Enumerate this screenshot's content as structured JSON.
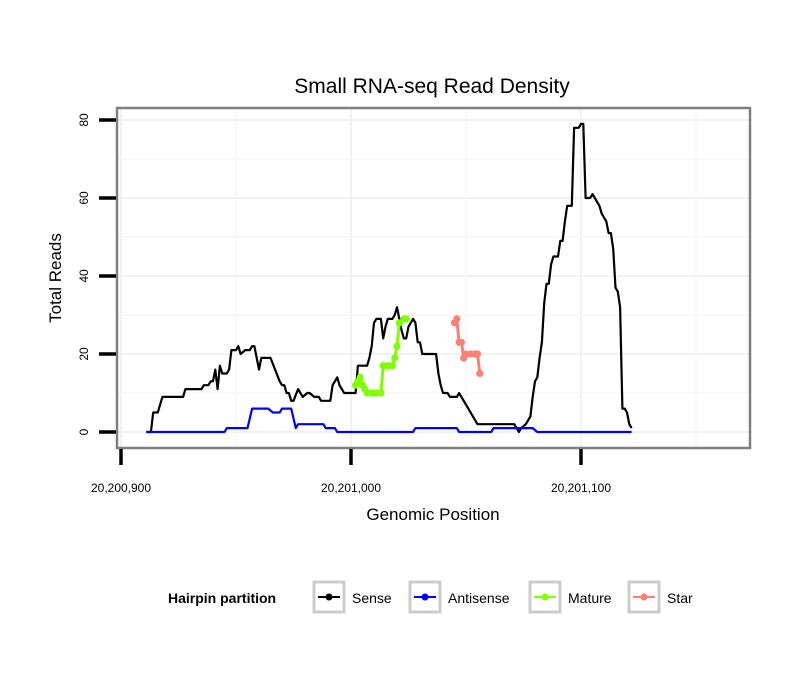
{
  "chart_data": {
    "type": "line",
    "title": "Small RNA-seq Read Density",
    "xlabel": "Genomic Position",
    "ylabel": "Total Reads",
    "xlim": [
      20200888,
      20201170
    ],
    "ylim": [
      -4,
      83
    ],
    "x_ticks": [
      20200900,
      20201000,
      20201100
    ],
    "x_tick_labels": [
      "20,200,900",
      "20,201,000",
      "20,201,100"
    ],
    "y_ticks": [
      0,
      20,
      40,
      60,
      80
    ],
    "y_tick_labels": [
      "0",
      "20",
      "40",
      "60",
      "80"
    ],
    "grid": true,
    "legend": {
      "title": "Hairpin partition",
      "position": "bottom",
      "entries": [
        {
          "label": "Sense",
          "color": "#000000"
        },
        {
          "label": "Antisense",
          "color": "#0000ff"
        },
        {
          "label": "Mature",
          "color": "#7fff00"
        },
        {
          "label": "Star",
          "color": "#fa8072"
        }
      ]
    },
    "series": [
      {
        "name": "Sense",
        "color": "#000000",
        "points": [
          [
            20200911,
            0
          ],
          [
            20200913,
            0
          ],
          [
            20200914,
            5
          ],
          [
            20200916,
            5
          ],
          [
            20200918,
            9
          ],
          [
            20200927,
            9
          ],
          [
            20200928,
            11
          ],
          [
            20200935,
            11
          ],
          [
            20200936,
            12
          ],
          [
            20200938,
            12
          ],
          [
            20200939,
            13
          ],
          [
            20200940,
            13
          ],
          [
            20200941,
            16
          ],
          [
            20200942,
            11
          ],
          [
            20200943,
            17
          ],
          [
            20200944,
            15
          ],
          [
            20200946,
            15
          ],
          [
            20200947,
            16
          ],
          [
            20200948,
            21
          ],
          [
            20200950,
            21
          ],
          [
            20200951,
            22
          ],
          [
            20200952,
            20
          ],
          [
            20200954,
            21
          ],
          [
            20200956,
            21
          ],
          [
            20200957,
            22
          ],
          [
            20200958,
            22
          ],
          [
            20200960,
            16
          ],
          [
            20200961,
            19
          ],
          [
            20200965,
            19
          ],
          [
            20200967,
            16
          ],
          [
            20200969,
            13
          ],
          [
            20200970,
            12
          ],
          [
            20200971,
            12
          ],
          [
            20200972,
            10
          ],
          [
            20200973,
            10
          ],
          [
            20200974,
            8
          ],
          [
            20200975,
            8
          ],
          [
            20200977,
            11
          ],
          [
            20200978,
            10
          ],
          [
            20200979,
            9
          ],
          [
            20200981,
            10
          ],
          [
            20200982,
            10
          ],
          [
            20200984,
            9
          ],
          [
            20200986,
            9
          ],
          [
            20200987,
            8
          ],
          [
            20200991,
            8
          ],
          [
            20200992,
            12
          ],
          [
            20200993,
            13
          ],
          [
            20200994,
            14
          ],
          [
            20200995,
            12
          ],
          [
            20200996,
            11
          ],
          [
            20200997,
            10
          ],
          [
            20201000,
            10
          ],
          [
            20201002,
            10
          ],
          [
            20201003,
            17
          ],
          [
            20201007,
            17
          ],
          [
            20201008,
            19
          ],
          [
            20201009,
            22
          ],
          [
            20201010,
            28
          ],
          [
            20201011,
            29
          ],
          [
            20201013,
            29
          ],
          [
            20201014,
            24
          ],
          [
            20201015,
            27
          ],
          [
            20201016,
            29
          ],
          [
            20201018,
            29
          ],
          [
            20201019,
            30
          ],
          [
            20201020,
            32
          ],
          [
            20201021,
            29
          ],
          [
            20201022,
            26
          ],
          [
            20201023,
            24
          ],
          [
            20201024,
            24
          ],
          [
            20201025,
            27
          ],
          [
            20201026,
            28
          ],
          [
            20201027,
            29
          ],
          [
            20201028,
            28
          ],
          [
            20201029,
            23
          ],
          [
            20201030,
            23
          ],
          [
            20201031,
            20
          ],
          [
            20201032,
            20
          ],
          [
            20201037,
            20
          ],
          [
            20201038,
            15
          ],
          [
            20201039,
            12
          ],
          [
            20201040,
            10
          ],
          [
            20201042,
            10
          ],
          [
            20201043,
            9
          ],
          [
            20201046,
            9
          ],
          [
            20201047,
            10
          ],
          [
            20201048,
            9
          ],
          [
            20201049,
            8
          ],
          [
            20201050,
            7
          ],
          [
            20201051,
            6
          ],
          [
            20201052,
            5
          ],
          [
            20201053,
            4
          ],
          [
            20201054,
            3
          ],
          [
            20201055,
            2
          ],
          [
            20201071,
            2
          ],
          [
            20201072,
            1
          ],
          [
            20201073,
            0
          ],
          [
            20201074,
            1
          ],
          [
            20201076,
            2
          ],
          [
            20201077,
            3
          ],
          [
            20201078,
            4
          ],
          [
            20201079,
            9
          ],
          [
            20201080,
            13
          ],
          [
            20201081,
            14
          ],
          [
            20201082,
            19
          ],
          [
            20201083,
            23
          ],
          [
            20201084,
            33
          ],
          [
            20201085,
            38
          ],
          [
            20201086,
            38
          ],
          [
            20201087,
            43
          ],
          [
            20201088,
            45
          ],
          [
            20201090,
            45
          ],
          [
            20201091,
            49
          ],
          [
            20201092,
            49
          ],
          [
            20201093,
            54
          ],
          [
            20201094,
            58
          ],
          [
            20201096,
            58
          ],
          [
            20201097,
            78
          ],
          [
            20201099,
            78
          ],
          [
            20201100,
            79
          ],
          [
            20201101,
            79
          ],
          [
            20201102,
            60
          ],
          [
            20201104,
            60
          ],
          [
            20201105,
            61
          ],
          [
            20201106,
            60
          ],
          [
            20201107,
            59
          ],
          [
            20201108,
            58
          ],
          [
            20201109,
            56
          ],
          [
            20201110,
            55
          ],
          [
            20201111,
            54
          ],
          [
            20201112,
            51
          ],
          [
            20201113,
            51
          ],
          [
            20201114,
            47
          ],
          [
            20201115,
            37
          ],
          [
            20201116,
            36
          ],
          [
            20201117,
            32
          ],
          [
            20201118,
            6
          ],
          [
            20201119,
            6
          ],
          [
            20201120,
            5
          ],
          [
            20201121,
            2
          ],
          [
            20201122,
            1
          ]
        ]
      },
      {
        "name": "Antisense",
        "color": "#0000ff",
        "points": [
          [
            20200911,
            0
          ],
          [
            20200945,
            0
          ],
          [
            20200946,
            1
          ],
          [
            20200955,
            1
          ],
          [
            20200957,
            6
          ],
          [
            20200964,
            6
          ],
          [
            20200966,
            5
          ],
          [
            20200969,
            5
          ],
          [
            20200970,
            6
          ],
          [
            20200974,
            6
          ],
          [
            20200976,
            1
          ],
          [
            20200977,
            2
          ],
          [
            20200988,
            2
          ],
          [
            20200989,
            1
          ],
          [
            20200993,
            1
          ],
          [
            20200994,
            0
          ],
          [
            20201027,
            0
          ],
          [
            20201028,
            1
          ],
          [
            20201046,
            1
          ],
          [
            20201047,
            0
          ],
          [
            20201061,
            0
          ],
          [
            20201062,
            1
          ],
          [
            20201079,
            1
          ],
          [
            20201081,
            0
          ],
          [
            20201122,
            0
          ]
        ]
      },
      {
        "name": "Mature",
        "color": "#7fff00",
        "points": [
          [
            20201002,
            12
          ],
          [
            20201003,
            13
          ],
          [
            20201004,
            14
          ],
          [
            20201005,
            12
          ],
          [
            20201006,
            11
          ],
          [
            20201007,
            10
          ],
          [
            20201009,
            10
          ],
          [
            20201010,
            10
          ],
          [
            20201011,
            10
          ],
          [
            20201013,
            10
          ],
          [
            20201014,
            17
          ],
          [
            20201016,
            17
          ],
          [
            20201018,
            17
          ],
          [
            20201019,
            19
          ],
          [
            20201020,
            22
          ],
          [
            20201021,
            28
          ],
          [
            20201023,
            29
          ],
          [
            20201024,
            29
          ]
        ]
      },
      {
        "name": "Star",
        "color": "#fa8072",
        "points": [
          [
            20201045,
            28
          ],
          [
            20201046,
            29
          ],
          [
            20201047,
            23
          ],
          [
            20201048,
            23
          ],
          [
            20201049,
            19
          ],
          [
            20201050,
            20
          ],
          [
            20201052,
            20
          ],
          [
            20201054,
            20
          ],
          [
            20201055,
            20
          ],
          [
            20201056,
            15
          ]
        ]
      }
    ]
  }
}
